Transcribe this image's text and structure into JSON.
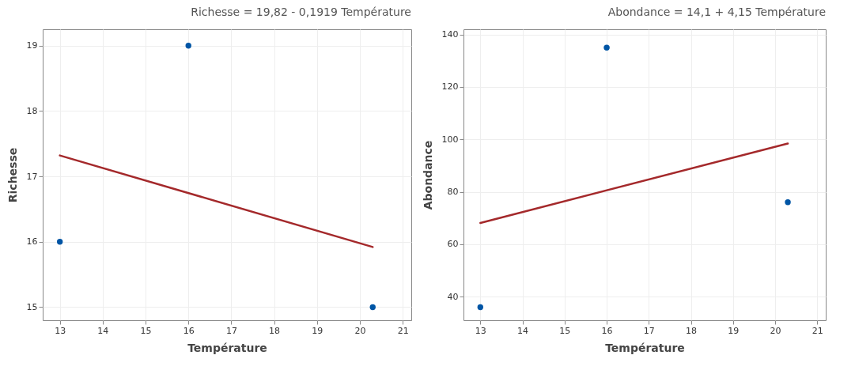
{
  "chart_data": [
    {
      "type": "scatter",
      "title": "Richesse = 19,82 - 0,1919 Température",
      "xlabel": "Température",
      "ylabel": "Richesse",
      "xlim": [
        12.6,
        21.2
      ],
      "xticks": [
        13,
        14,
        15,
        16,
        17,
        18,
        19,
        20,
        21
      ],
      "ylim": [
        14.8,
        19.25
      ],
      "yticks": [
        15,
        16,
        17,
        18,
        19
      ],
      "grid": true,
      "series": [
        {
          "color": "#0055a5",
          "x": [
            13,
            16,
            20.3
          ],
          "values": [
            16,
            19,
            15
          ]
        },
        {
          "type": "line",
          "color": "#a4292b",
          "x": [
            13,
            20.3
          ],
          "values": [
            17.32,
            15.92
          ]
        }
      ]
    },
    {
      "type": "scatter",
      "title": "Abondance = 14,1 + 4,15 Température",
      "xlabel": "Température",
      "ylabel": "Abondance",
      "xlim": [
        12.6,
        21.2
      ],
      "xticks": [
        13,
        14,
        15,
        16,
        17,
        18,
        19,
        20,
        21
      ],
      "ylim": [
        31,
        142
      ],
      "yticks": [
        40,
        60,
        80,
        100,
        120,
        140
      ],
      "grid": true,
      "series": [
        {
          "color": "#0055a5",
          "x": [
            13,
            16,
            20.3
          ],
          "values": [
            36,
            135,
            76
          ]
        },
        {
          "type": "line",
          "color": "#a4292b",
          "x": [
            13,
            20.3
          ],
          "values": [
            68.1,
            98.4
          ]
        }
      ]
    }
  ]
}
